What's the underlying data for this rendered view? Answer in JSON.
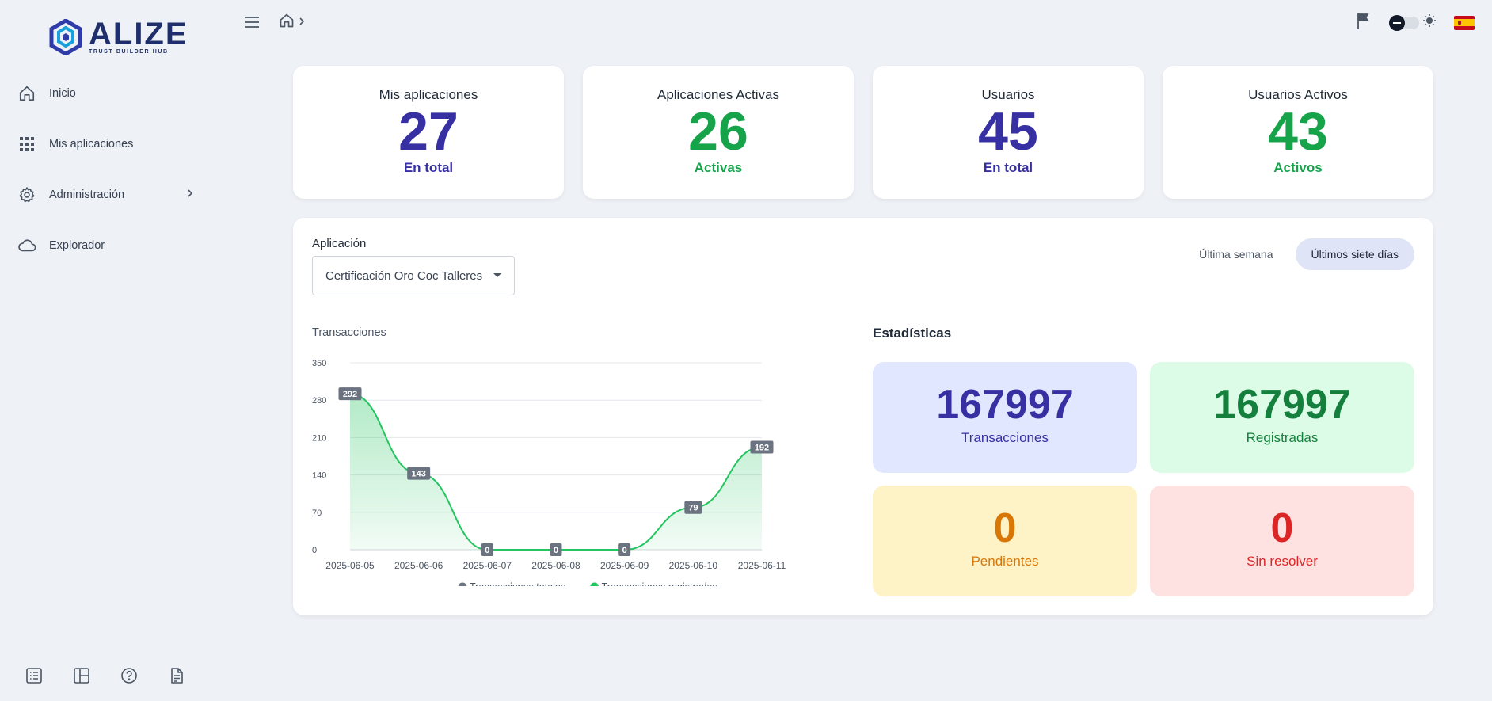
{
  "app": {
    "logo_word": "ALIZE",
    "logo_sub": "TRUST BUILDER HUB"
  },
  "sidebar": {
    "items": [
      {
        "label": "Inicio",
        "icon": "home-icon"
      },
      {
        "label": "Mis aplicaciones",
        "icon": "grid-icon"
      },
      {
        "label": "Administración",
        "icon": "gear-icon"
      },
      {
        "label": "Explorador",
        "icon": "cloud-icon"
      }
    ],
    "footer_icons": [
      "list-icon",
      "layout-icon",
      "help-icon",
      "document-icon"
    ]
  },
  "kpis": [
    {
      "title": "Mis aplicaciones",
      "value": "27",
      "sub": "En total",
      "color": "#3730a3"
    },
    {
      "title": "Aplicaciones Activas",
      "value": "26",
      "sub": "Activas",
      "color": "#16a34a"
    },
    {
      "title": "Usuarios",
      "value": "45",
      "sub": "En total",
      "color": "#3730a3"
    },
    {
      "title": "Usuarios Activos",
      "value": "43",
      "sub": "Activos",
      "color": "#16a34a"
    }
  ],
  "filters": {
    "app_label": "Aplicación",
    "app_selected": "Certificación Oro Coc Talleres",
    "period_options": [
      "Última semana",
      "Últimos siete días"
    ],
    "period_selected": "Últimos siete días"
  },
  "chart_title": "Transacciones",
  "chart_data": {
    "type": "area",
    "x": [
      "2025-06-05",
      "2025-06-06",
      "2025-06-07",
      "2025-06-08",
      "2025-06-09",
      "2025-06-10",
      "2025-06-11"
    ],
    "series": [
      {
        "name": "Transacciones totales",
        "values": [
          292,
          143,
          0,
          0,
          0,
          79,
          192
        ],
        "color": "#6b7280"
      },
      {
        "name": "Transacciones registradas",
        "values": [
          292,
          143,
          0,
          0,
          0,
          79,
          192
        ],
        "color": "#22c55e"
      }
    ],
    "ylim": [
      0,
      350
    ],
    "yticks": [
      0,
      70,
      140,
      210,
      280,
      350
    ],
    "grid": true,
    "legend": "bottom"
  },
  "stats": {
    "title": "Estadísticas",
    "cards": [
      {
        "value": "167997",
        "label": "Transacciones",
        "tone": "blue"
      },
      {
        "value": "167997",
        "label": "Registradas",
        "tone": "green"
      },
      {
        "value": "0",
        "label": "Pendientes",
        "tone": "yellow"
      },
      {
        "value": "0",
        "label": "Sin resolver",
        "tone": "red"
      }
    ]
  }
}
